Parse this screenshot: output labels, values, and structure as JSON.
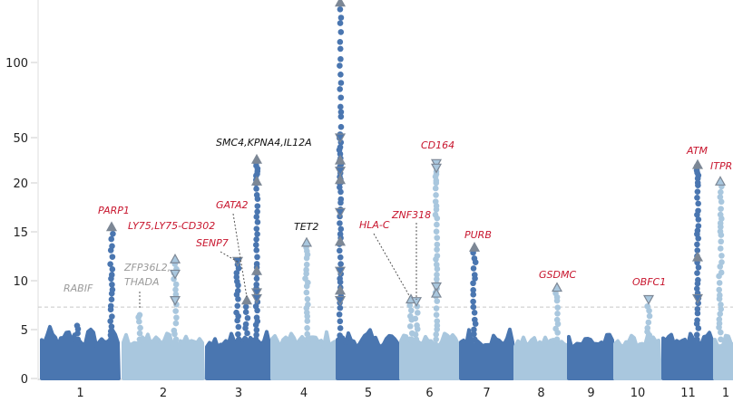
{
  "chart_data": {
    "type": "scatter",
    "subtype": "manhattan",
    "title": "",
    "xlabel": "",
    "ylabel": "",
    "y_scale": "piecewise (linear 0-20, compressed above 20)",
    "yticks": [
      0,
      5,
      10,
      15,
      20,
      50,
      100
    ],
    "ylim": [
      0,
      140
    ],
    "grid": false,
    "significance_threshold": 7.3,
    "colors": {
      "dark": "#4a76b0",
      "light": "#a9c7de",
      "marker": "#7c8795",
      "label_red": "#c8162e",
      "label_black": "#111111",
      "label_grey": "#9a9a9a",
      "threshold_line": "#c8c8c8"
    },
    "chromosomes": [
      {
        "label": "1",
        "color": "dark",
        "background_max": 5.3
      },
      {
        "label": "2",
        "color": "light",
        "background_max": 5.0
      },
      {
        "label": "3",
        "color": "dark",
        "background_max": 5.0
      },
      {
        "label": "4",
        "color": "light",
        "background_max": 5.0
      },
      {
        "label": "5",
        "color": "dark",
        "background_max": 5.0
      },
      {
        "label": "6",
        "color": "light",
        "background_max": 5.0
      },
      {
        "label": "7",
        "color": "dark",
        "background_max": 5.2
      },
      {
        "label": "8",
        "color": "light",
        "background_max": 4.6
      },
      {
        "label": "9",
        "color": "dark",
        "background_max": 4.6
      },
      {
        "label": "10",
        "color": "light",
        "background_max": 4.6
      },
      {
        "label": "11",
        "color": "dark",
        "background_max": 4.8
      },
      {
        "label": "1",
        "color": "light",
        "background_max": 4.6
      }
    ],
    "loci": [
      {
        "gene": "RABIF",
        "chr": "1",
        "peak": 5.4,
        "label_color": "grey",
        "markers": []
      },
      {
        "gene": "PARP1",
        "chr": "1",
        "peak": 15.5,
        "label_color": "red",
        "markers": [
          {
            "value": 15.5,
            "dir": "up"
          }
        ]
      },
      {
        "gene": "ZFP36L2,",
        "gene2": "THADA",
        "chr": "2",
        "peak": 6.5,
        "label_color": "grey",
        "markers": []
      },
      {
        "gene": "LY75,LY75-CD302",
        "chr": "2",
        "peak": 12.2,
        "label_color": "red",
        "markers": [
          {
            "value": 12.2,
            "dir": "up"
          },
          {
            "value": 10.7,
            "dir": "down"
          },
          {
            "value": 8.0,
            "dir": "down"
          }
        ]
      },
      {
        "gene": "SENP7",
        "chr": "3",
        "peak": 12.0,
        "label_color": "red",
        "markers": [
          {
            "value": 12.0,
            "dir": "down"
          }
        ]
      },
      {
        "gene": "GATA2",
        "chr": "3",
        "peak": 8.0,
        "label_color": "red",
        "markers": [
          {
            "value": 8.0,
            "dir": "up"
          }
        ]
      },
      {
        "gene": "SMC4,KPNA4,IL12A",
        "chr": "3",
        "peak": 35.5,
        "label_color": "black",
        "markers": [
          {
            "value": 35.5,
            "dir": "up"
          },
          {
            "value": 21,
            "dir": "up"
          },
          {
            "value": 11,
            "dir": "up"
          },
          {
            "value": 8.8,
            "dir": "down"
          },
          {
            "value": 8.2,
            "dir": "down"
          }
        ]
      },
      {
        "gene": "TET2",
        "chr": "4",
        "peak": 13.9,
        "label_color": "black",
        "markers": [
          {
            "value": 13.9,
            "dir": "up"
          }
        ]
      },
      {
        "gene": "",
        "chr": "5",
        "peak": 140,
        "label_color": "black",
        "markers": [
          {
            "value": 140,
            "dir": "up"
          },
          {
            "value": 50,
            "dir": "down"
          },
          {
            "value": 35,
            "dir": "up"
          },
          {
            "value": 28,
            "dir": "down"
          },
          {
            "value": 22,
            "dir": "up"
          },
          {
            "value": 17,
            "dir": "down"
          },
          {
            "value": 14,
            "dir": "up"
          },
          {
            "value": 11,
            "dir": "down"
          },
          {
            "value": 9,
            "dir": "up"
          },
          {
            "value": 8,
            "dir": "down"
          }
        ]
      },
      {
        "gene": "HLA-C",
        "chr": "6",
        "peak": 8.1,
        "label_color": "red",
        "markers": [
          {
            "value": 8.1,
            "dir": "up"
          }
        ]
      },
      {
        "gene": "ZNF318",
        "chr": "6",
        "peak": 7.9,
        "label_color": "red",
        "markers": [
          {
            "value": 7.9,
            "dir": "down"
          }
        ]
      },
      {
        "gene": "CD164",
        "chr": "6",
        "peak": 33,
        "label_color": "red",
        "markers": [
          {
            "value": 33,
            "dir": "down"
          },
          {
            "value": 30,
            "dir": "down"
          },
          {
            "value": 9.4,
            "dir": "down"
          },
          {
            "value": 8.7,
            "dir": "up"
          }
        ]
      },
      {
        "gene": "PURB",
        "chr": "7",
        "peak": 13.4,
        "label_color": "red",
        "markers": [
          {
            "value": 13.4,
            "dir": "up"
          }
        ]
      },
      {
        "gene": "GSDMC",
        "chr": "8",
        "peak": 9.3,
        "label_color": "red",
        "markers": [
          {
            "value": 9.3,
            "dir": "up"
          }
        ]
      },
      {
        "gene": "OBFC1",
        "chr": "10",
        "peak": 8.1,
        "label_color": "red",
        "markers": [
          {
            "value": 8.1,
            "dir": "down"
          }
        ]
      },
      {
        "gene": "ATM",
        "chr": "11",
        "peak": 32,
        "label_color": "red",
        "markers": [
          {
            "value": 32,
            "dir": "up"
          },
          {
            "value": 12.4,
            "dir": "up"
          },
          {
            "value": 8.2,
            "dir": "down"
          }
        ]
      },
      {
        "gene": "ITPR",
        "chr": "1",
        "peak": 21,
        "label_color": "red",
        "markers": [
          {
            "value": 21,
            "dir": "up"
          }
        ]
      }
    ]
  }
}
